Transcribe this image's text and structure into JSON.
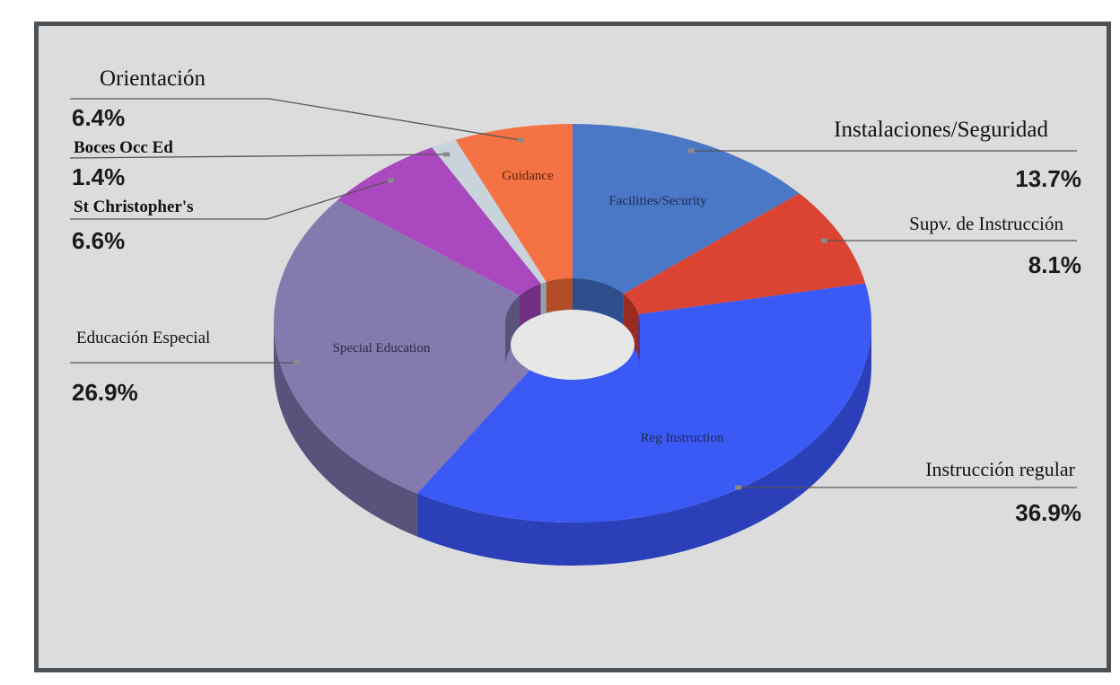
{
  "chart_data": {
    "type": "pie",
    "style": "3d-donut",
    "slices": [
      {
        "key": "facilities",
        "label": "Facilities/Security",
        "translated_label": "Instalaciones/Seguridad",
        "percent_label": "13.7%",
        "value": 13.7,
        "color": "#4a77c6",
        "side_color": "#2e4f8c",
        "inner_text_color": "#1d2c52"
      },
      {
        "key": "supv",
        "label": "",
        "translated_label": "Supv. de Instrucción",
        "percent_label": "8.1%",
        "value": 8.1,
        "color": "#db4433",
        "side_color": "#9b2a20",
        "inner_text_color": "#1d2c52"
      },
      {
        "key": "reg",
        "label": "Reg Instruction",
        "translated_label": "Instrucción regular",
        "percent_label": "36.9%",
        "value": 36.9,
        "color": "#3a59f5",
        "side_color": "#2a3fb8",
        "inner_text_color": "#1d2c52"
      },
      {
        "key": "special",
        "label": "Special Education",
        "translated_label": "Educación Especial",
        "percent_label": "26.9%",
        "value": 26.9,
        "color": "#857aad",
        "side_color": "#5a527a",
        "inner_text_color": "#2e2a45"
      },
      {
        "key": "stc",
        "label": "",
        "translated_label": "St Christopher's",
        "percent_label": "6.6%",
        "value": 6.6,
        "color": "#aa48bf",
        "side_color": "#702f80",
        "inner_text_color": "#2e2a45"
      },
      {
        "key": "boces",
        "label": "",
        "translated_label": "Boces Occ Ed",
        "percent_label": "1.4%",
        "value": 1.4,
        "color": "#c8d3dc",
        "side_color": "#93a0aa",
        "inner_text_color": "#2e2a45"
      },
      {
        "key": "guidance",
        "label": "Guidance",
        "translated_label": "Orientación",
        "percent_label": "6.4%",
        "value": 6.4,
        "color": "#f47243",
        "side_color": "#b24d28",
        "inner_text_color": "#5a2410"
      }
    ],
    "colors": {
      "frame_border": "#4b5154",
      "frame_fill": "#dcdcdc",
      "leader_line": "#555555"
    }
  }
}
